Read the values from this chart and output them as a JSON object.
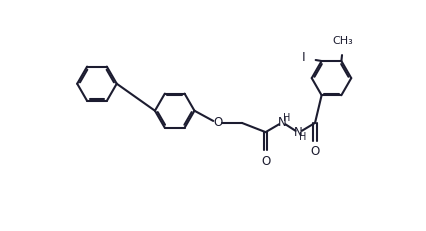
{
  "bg": "#ffffff",
  "lc": "#1c1c30",
  "lw": 1.5,
  "fs": 8.5,
  "fig_w": 4.27,
  "fig_h": 2.31,
  "dpi": 100,
  "R": 0.58,
  "xlim": [
    0.0,
    9.6
  ],
  "ylim": [
    0.0,
    5.4
  ]
}
